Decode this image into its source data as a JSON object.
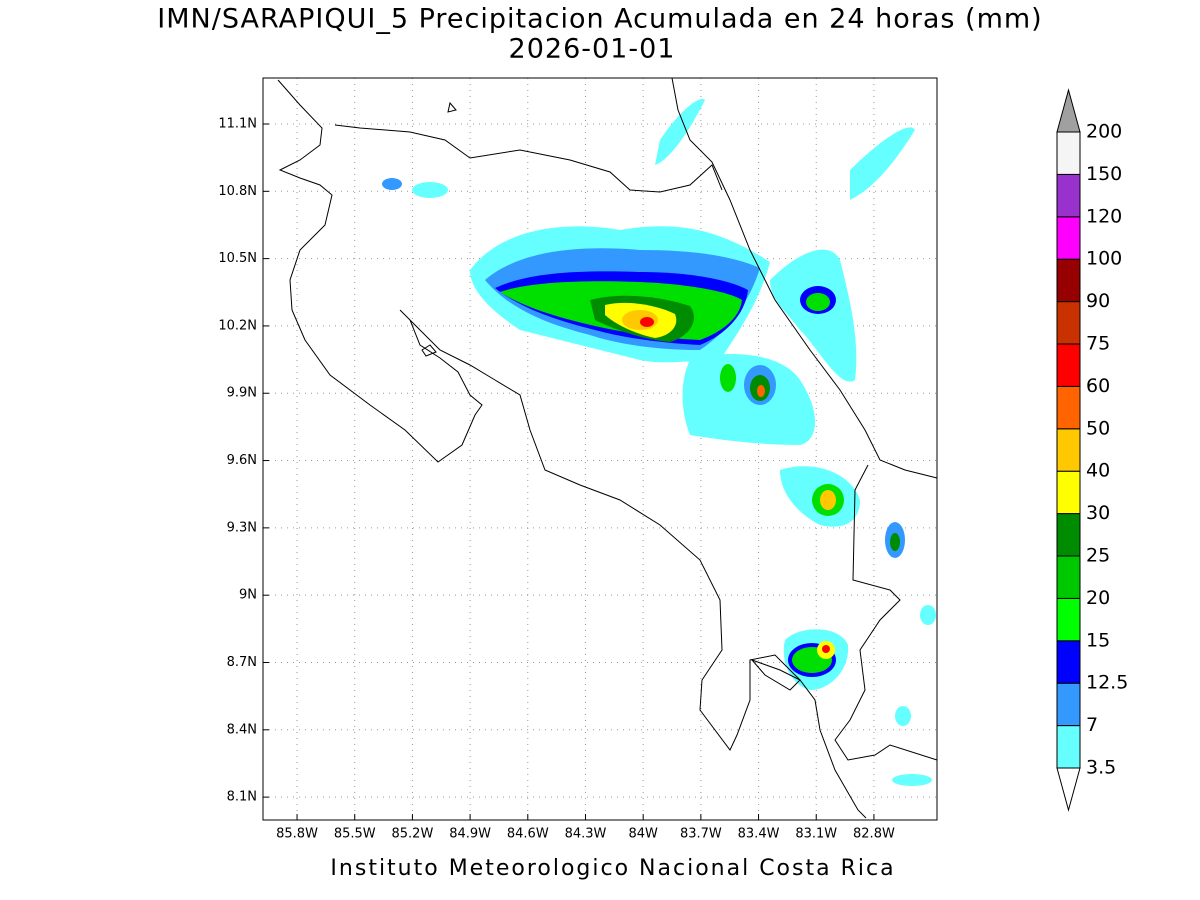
{
  "title": "IMN/SARAPIQUI_5 Precipitacion Acumulada en 24 horas (mm)",
  "subtitle": "2026-01-01",
  "footer": "Instituto Meteorologico Nacional Costa Rica",
  "map": {
    "xlim": [
      -85.977,
      -82.472
    ],
    "ylim": [
      7.998,
      11.305
    ],
    "xticks": [
      {
        "value": -85.8,
        "label": "85.8W"
      },
      {
        "value": -85.5,
        "label": "85.5W"
      },
      {
        "value": -85.2,
        "label": "85.2W"
      },
      {
        "value": -84.9,
        "label": "84.9W"
      },
      {
        "value": -84.6,
        "label": "84.6W"
      },
      {
        "value": -84.3,
        "label": "84.3W"
      },
      {
        "value": -84,
        "label": "84W"
      },
      {
        "value": -83.7,
        "label": "83.7W"
      },
      {
        "value": -83.4,
        "label": "83.4W"
      },
      {
        "value": -83.1,
        "label": "83.1W"
      },
      {
        "value": -82.8,
        "label": "82.8W"
      }
    ],
    "yticks": [
      {
        "value": 11.1,
        "label": "11.1N"
      },
      {
        "value": 10.8,
        "label": "10.8N"
      },
      {
        "value": 10.5,
        "label": "10.5N"
      },
      {
        "value": 10.2,
        "label": "10.2N"
      },
      {
        "value": 9.9,
        "label": "9.9N"
      },
      {
        "value": 9.6,
        "label": "9.6N"
      },
      {
        "value": 9.3,
        "label": "9.3N"
      },
      {
        "value": 9,
        "label": "9N"
      },
      {
        "value": 8.7,
        "label": "8.7N"
      },
      {
        "value": 8.4,
        "label": "8.4N"
      },
      {
        "value": 8.1,
        "label": "8.1N"
      }
    ],
    "grid": true
  },
  "colorbar": {
    "levels": [
      3.5,
      7,
      12.5,
      15,
      20,
      25,
      30,
      40,
      50,
      60,
      75,
      90,
      100,
      120,
      150,
      200
    ],
    "colors": [
      "#66ffff",
      "#3399ff",
      "#0000ff",
      "#00ff00",
      "#00c800",
      "#008c00",
      "#ffff00",
      "#ffc800",
      "#ff6400",
      "#ff0000",
      "#c83200",
      "#960000",
      "#ff00ff",
      "#9932cc",
      "#f5f5f5"
    ],
    "under_color": "#ffffff",
    "over_color": "#a0a0a0"
  }
}
